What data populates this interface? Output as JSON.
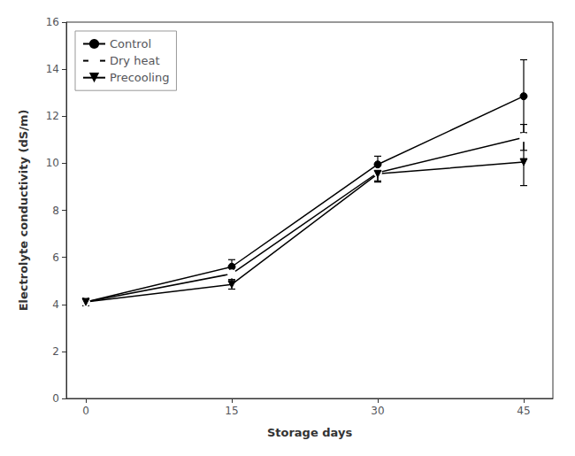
{
  "chart_data": {
    "type": "line",
    "xlabel": "Storage days",
    "ylabel": "Electrolyte conductivity (dS/m)",
    "x": [
      0,
      15,
      30,
      45
    ],
    "series": [
      {
        "name": "Control",
        "color": "#000000",
        "marker": "circle",
        "values": [
          4.1,
          5.6,
          9.95,
          12.85
        ],
        "errors": [
          0.15,
          0.3,
          0.35,
          1.55
        ]
      },
      {
        "name": "Dry heat",
        "color": "#000000",
        "marker": "open circle",
        "values": [
          4.1,
          5.3,
          9.6,
          11.1
        ],
        "errors": [
          0.15,
          0.25,
          0.35,
          0.55
        ]
      },
      {
        "name": "Precooling",
        "color": "#000000",
        "marker": "inverted triangle",
        "values": [
          4.1,
          4.85,
          9.55,
          10.05
        ],
        "errors": [
          0.15,
          0.2,
          0.35,
          1.0
        ]
      }
    ],
    "xlim": [
      -2,
      48
    ],
    "xticks": [
      0,
      15,
      30,
      45
    ],
    "ylim": [
      0,
      16
    ],
    "yticks": [
      0,
      2,
      4,
      6,
      8,
      10,
      12,
      14,
      16
    ],
    "grid": false,
    "legend": "upper left"
  }
}
